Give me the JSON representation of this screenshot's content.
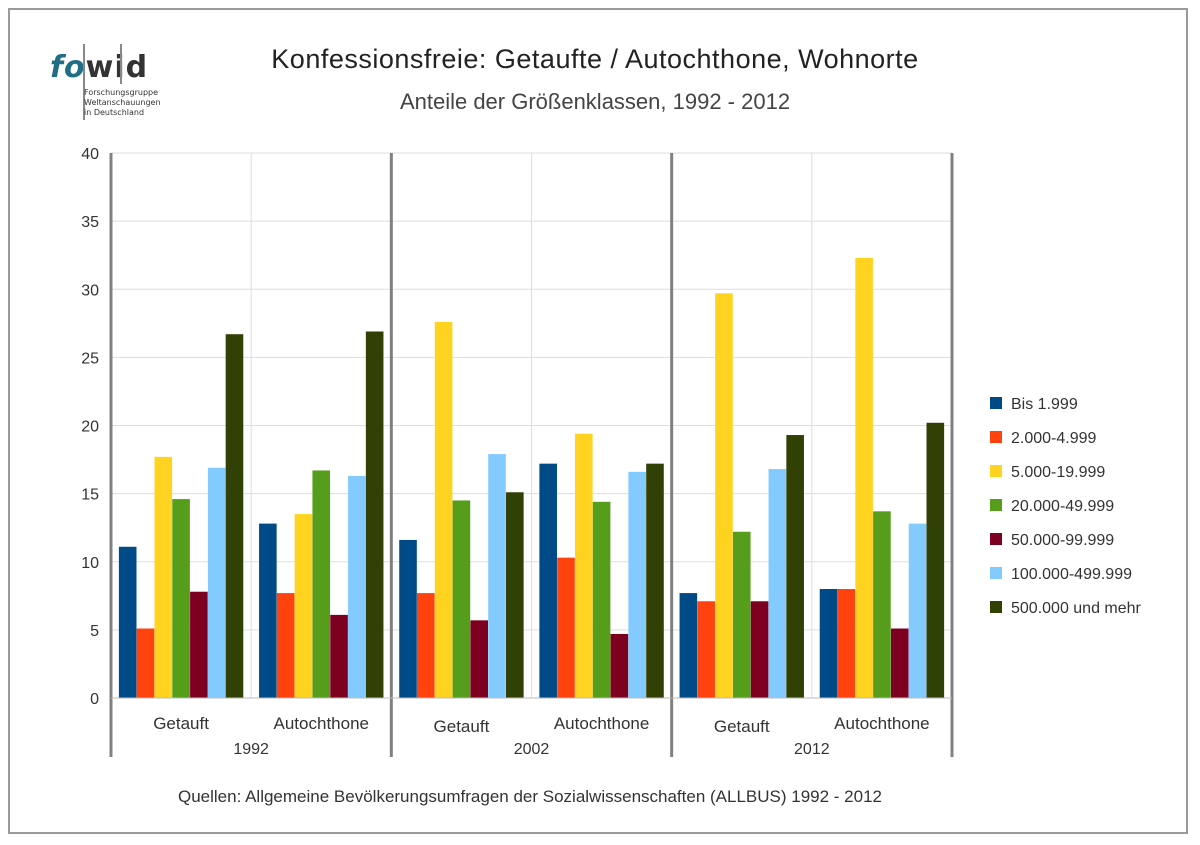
{
  "logo": {
    "word_fo": "fo",
    "word_wid": "wid",
    "subtitle_lines": [
      "Forschungsgruppe",
      "Weltanschauungen",
      "in Deutschland"
    ]
  },
  "source_note": "Quellen: Allgemeine Bevölkerungsumfragen der Sozialwissenschaften (ALLBUS) 1992 - 2012",
  "chart_data": {
    "type": "bar",
    "title": "Konfessionsfreie: Getaufte / Autochthone, Wohnorte",
    "subtitle": "Anteile der Größenklassen, 1992 - 2012",
    "xlabel": "",
    "ylabel": "",
    "ylim": [
      0,
      40
    ],
    "yticks": [
      0,
      5,
      10,
      15,
      20,
      25,
      30,
      35,
      40
    ],
    "grid": true,
    "legend_position": "right",
    "groups": [
      {
        "label": "1992",
        "categories": [
          "Getauft",
          "Autochthone"
        ]
      },
      {
        "label": "2002",
        "categories": [
          "Getauft",
          "Autochthone"
        ]
      },
      {
        "label": "2012",
        "categories": [
          "Getauft",
          "Autochthone"
        ]
      }
    ],
    "categories": [
      "Getauft",
      "Autochthone",
      "Getauft",
      "Autochthone",
      "Getauft",
      "Autochthone"
    ],
    "series": [
      {
        "name": "Bis 1.999",
        "color": "#004a87",
        "values": [
          11.1,
          12.8,
          11.6,
          17.2,
          7.7,
          8.0
        ]
      },
      {
        "name": "2.000-4.999",
        "color": "#ff420e",
        "values": [
          5.1,
          7.7,
          7.7,
          10.3,
          7.1,
          8.0
        ]
      },
      {
        "name": "5.000-19.999",
        "color": "#ffd320",
        "values": [
          17.7,
          13.5,
          27.6,
          19.4,
          29.7,
          32.3
        ]
      },
      {
        "name": "20.000-49.999",
        "color": "#579d1c",
        "values": [
          14.6,
          16.7,
          14.5,
          14.4,
          12.2,
          13.7
        ]
      },
      {
        "name": "50.000-99.999",
        "color": "#7e0021",
        "values": [
          7.8,
          6.1,
          5.7,
          4.7,
          7.1,
          5.1
        ]
      },
      {
        "name": "100.000-499.999",
        "color": "#83caff",
        "values": [
          16.9,
          16.3,
          17.9,
          16.6,
          16.8,
          12.8
        ]
      },
      {
        "name": "500.000 und mehr",
        "color": "#314004",
        "values": [
          26.7,
          26.9,
          15.1,
          17.2,
          19.3,
          20.2
        ]
      }
    ]
  }
}
